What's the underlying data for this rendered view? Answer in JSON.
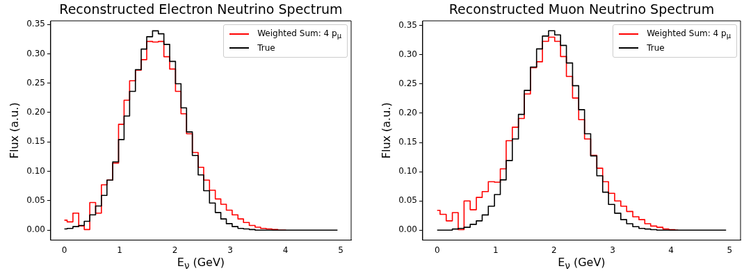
{
  "chart_data": [
    {
      "type": "step",
      "title": "Reconstructed Electron Neutrino Spectrum",
      "xlabel": "E$_{ν}$ (GeV)",
      "ylabel": "Flux (a.u.)",
      "legend": "top right",
      "x": [
        0,
        0.1,
        0.21,
        0.31,
        0.41,
        0.51,
        0.62,
        0.72,
        0.82,
        0.93,
        1.03,
        1.13,
        1.23,
        1.34,
        1.44,
        1.54,
        1.65,
        1.75,
        1.85,
        1.96,
        2.06,
        2.16,
        2.26,
        2.37,
        2.47,
        2.57,
        2.68,
        2.78,
        2.88,
        2.98,
        3.09,
        3.19,
        3.29,
        3.4,
        3.5,
        3.6,
        3.7,
        3.81,
        3.91,
        4.01,
        4.12,
        4.22,
        4.32,
        4.43,
        4.53,
        4.63,
        4.73,
        4.84,
        4.94
      ],
      "series": [
        {
          "name": "Weighted Sum: 4 p$_{μ}$",
          "color": "#ff0000",
          "values": [
            0.017,
            0.014,
            0.029,
            0.007,
            0.001,
            0.047,
            0.029,
            0.077,
            0.085,
            0.114,
            0.18,
            0.221,
            0.254,
            0.272,
            0.29,
            0.321,
            0.32,
            0.321,
            0.295,
            0.274,
            0.236,
            0.198,
            0.164,
            0.132,
            0.107,
            0.085,
            0.068,
            0.053,
            0.044,
            0.034,
            0.026,
            0.019,
            0.013,
            0.008,
            0.005,
            0.003,
            0.002,
            0.001,
            0,
            0,
            null,
            null,
            null,
            null,
            null,
            null,
            null,
            null,
            null
          ]
        },
        {
          "name": "True",
          "color": "#000000",
          "values": [
            0.002,
            0.003,
            0.006,
            0.008,
            0.015,
            0.026,
            0.041,
            0.059,
            0.085,
            0.116,
            0.154,
            0.194,
            0.236,
            0.273,
            0.308,
            0.329,
            0.339,
            0.334,
            0.316,
            0.287,
            0.249,
            0.208,
            0.167,
            0.127,
            0.094,
            0.067,
            0.046,
            0.03,
            0.019,
            0.011,
            0.006,
            0.003,
            0.002,
            0.001,
            0,
            0,
            0,
            0,
            0,
            0,
            0,
            0,
            0,
            0,
            0,
            0,
            0,
            0,
            0
          ]
        }
      ],
      "xlim": [
        -0.247,
        5.187
      ],
      "ylim": [
        -0.017,
        0.356
      ],
      "xticks": [
        0,
        1,
        2,
        3,
        4,
        5
      ],
      "yticks": [
        {
          "value": 0,
          "label": "0.00"
        },
        {
          "value": 0.05,
          "label": "0.05"
        },
        {
          "value": 0.1,
          "label": "0.10"
        },
        {
          "value": 0.15,
          "label": "0.15"
        },
        {
          "value": 0.2,
          "label": "0.20"
        },
        {
          "value": 0.25,
          "label": "0.25"
        },
        {
          "value": 0.3,
          "label": "0.30"
        },
        {
          "value": 0.35,
          "label": "0.35"
        }
      ]
    },
    {
      "type": "step",
      "title": "Reconstructed Muon Neutrino Spectrum",
      "xlabel": "E$_{ν}$ (GeV)",
      "ylabel": "Flux (a.u.)",
      "legend": "top right",
      "x": [
        0,
        0.1,
        0.21,
        0.31,
        0.41,
        0.51,
        0.62,
        0.72,
        0.82,
        0.93,
        1.03,
        1.13,
        1.23,
        1.34,
        1.44,
        1.54,
        1.65,
        1.75,
        1.85,
        1.96,
        2.06,
        2.16,
        2.26,
        2.37,
        2.47,
        2.57,
        2.68,
        2.78,
        2.88,
        2.98,
        3.09,
        3.19,
        3.29,
        3.4,
        3.5,
        3.6,
        3.7,
        3.81,
        3.91,
        4.01,
        4.12,
        4.22,
        4.32,
        4.43,
        4.53,
        4.63,
        4.73,
        4.84,
        4.94
      ],
      "series": [
        {
          "name": "Weighted Sum: 4 p$_{μ}$",
          "color": "#ff0000",
          "values": [
            0.034,
            0.027,
            0.016,
            0.03,
            0.001,
            0.05,
            0.035,
            0.056,
            0.066,
            0.083,
            0.082,
            0.105,
            0.153,
            0.176,
            0.191,
            0.233,
            0.278,
            0.288,
            0.323,
            0.33,
            0.323,
            0.297,
            0.263,
            0.226,
            0.189,
            0.156,
            0.128,
            0.106,
            0.083,
            0.063,
            0.05,
            0.041,
            0.032,
            0.023,
            0.018,
            0.011,
            0.007,
            0.005,
            0.002,
            0.001,
            0,
            null,
            null,
            null,
            null,
            null,
            null,
            null,
            null
          ]
        },
        {
          "name": "True",
          "color": "#000000",
          "values": [
            0,
            0,
            0,
            0.002,
            0.003,
            0.005,
            0.01,
            0.016,
            0.026,
            0.041,
            0.061,
            0.086,
            0.119,
            0.156,
            0.198,
            0.239,
            0.279,
            0.31,
            0.332,
            0.341,
            0.334,
            0.316,
            0.286,
            0.247,
            0.206,
            0.165,
            0.127,
            0.093,
            0.065,
            0.044,
            0.029,
            0.018,
            0.011,
            0.006,
            0.003,
            0.002,
            0.001,
            0,
            0,
            0,
            0,
            0,
            0,
            0,
            0,
            0,
            0,
            0,
            0
          ]
        }
      ],
      "xlim": [
        -0.247,
        5.187
      ],
      "ylim": [
        -0.017,
        0.358
      ],
      "xticks": [
        0,
        1,
        2,
        3,
        4,
        5
      ],
      "yticks": [
        {
          "value": 0,
          "label": "0.00"
        },
        {
          "value": 0.05,
          "label": "0.05"
        },
        {
          "value": 0.1,
          "label": "0.10"
        },
        {
          "value": 0.15,
          "label": "0.15"
        },
        {
          "value": 0.2,
          "label": "0.20"
        },
        {
          "value": 0.25,
          "label": "0.25"
        },
        {
          "value": 0.3,
          "label": "0.30"
        },
        {
          "value": 0.35,
          "label": "0.35"
        }
      ]
    }
  ]
}
